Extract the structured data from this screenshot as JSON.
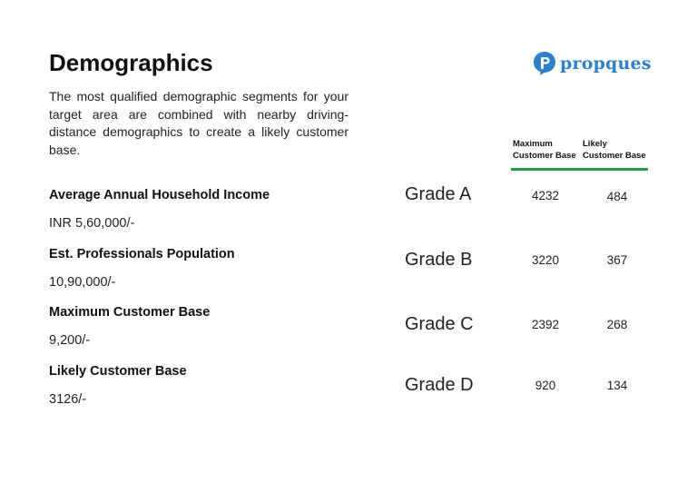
{
  "header": {
    "title": "Demographics",
    "intro": "The most qualified demographic segments for your target area are combined with nearby driving-distance demographics to create a likely customer base."
  },
  "logo": {
    "text": "propques",
    "icon": "speech-bubble-p-icon",
    "color": "#2f80c8"
  },
  "metrics": [
    {
      "label": "Average Annual Household Income",
      "value": "INR 5,60,000/-"
    },
    {
      "label": "Est. Professionals Population",
      "value": "10,90,000/-"
    },
    {
      "label": "Maximum Customer Base",
      "value": "9,200/-"
    },
    {
      "label": "Likely Customer Base",
      "value": "3126/-"
    }
  ],
  "grade_table": {
    "columns": {
      "max_line1": "Maximum",
      "max_line2": "Customer Base",
      "likely_line1": "Likely",
      "likely_line2": "Customer Base"
    },
    "accent_color": "#1e9a48",
    "rows": [
      {
        "grade": "Grade A",
        "maximum": "4232",
        "likely": "484"
      },
      {
        "grade": "Grade B",
        "maximum": "3220",
        "likely": "367"
      },
      {
        "grade": "Grade C",
        "maximum": "2392",
        "likely": "268"
      },
      {
        "grade": "Grade D",
        "maximum": "920",
        "likely": "134"
      }
    ]
  }
}
